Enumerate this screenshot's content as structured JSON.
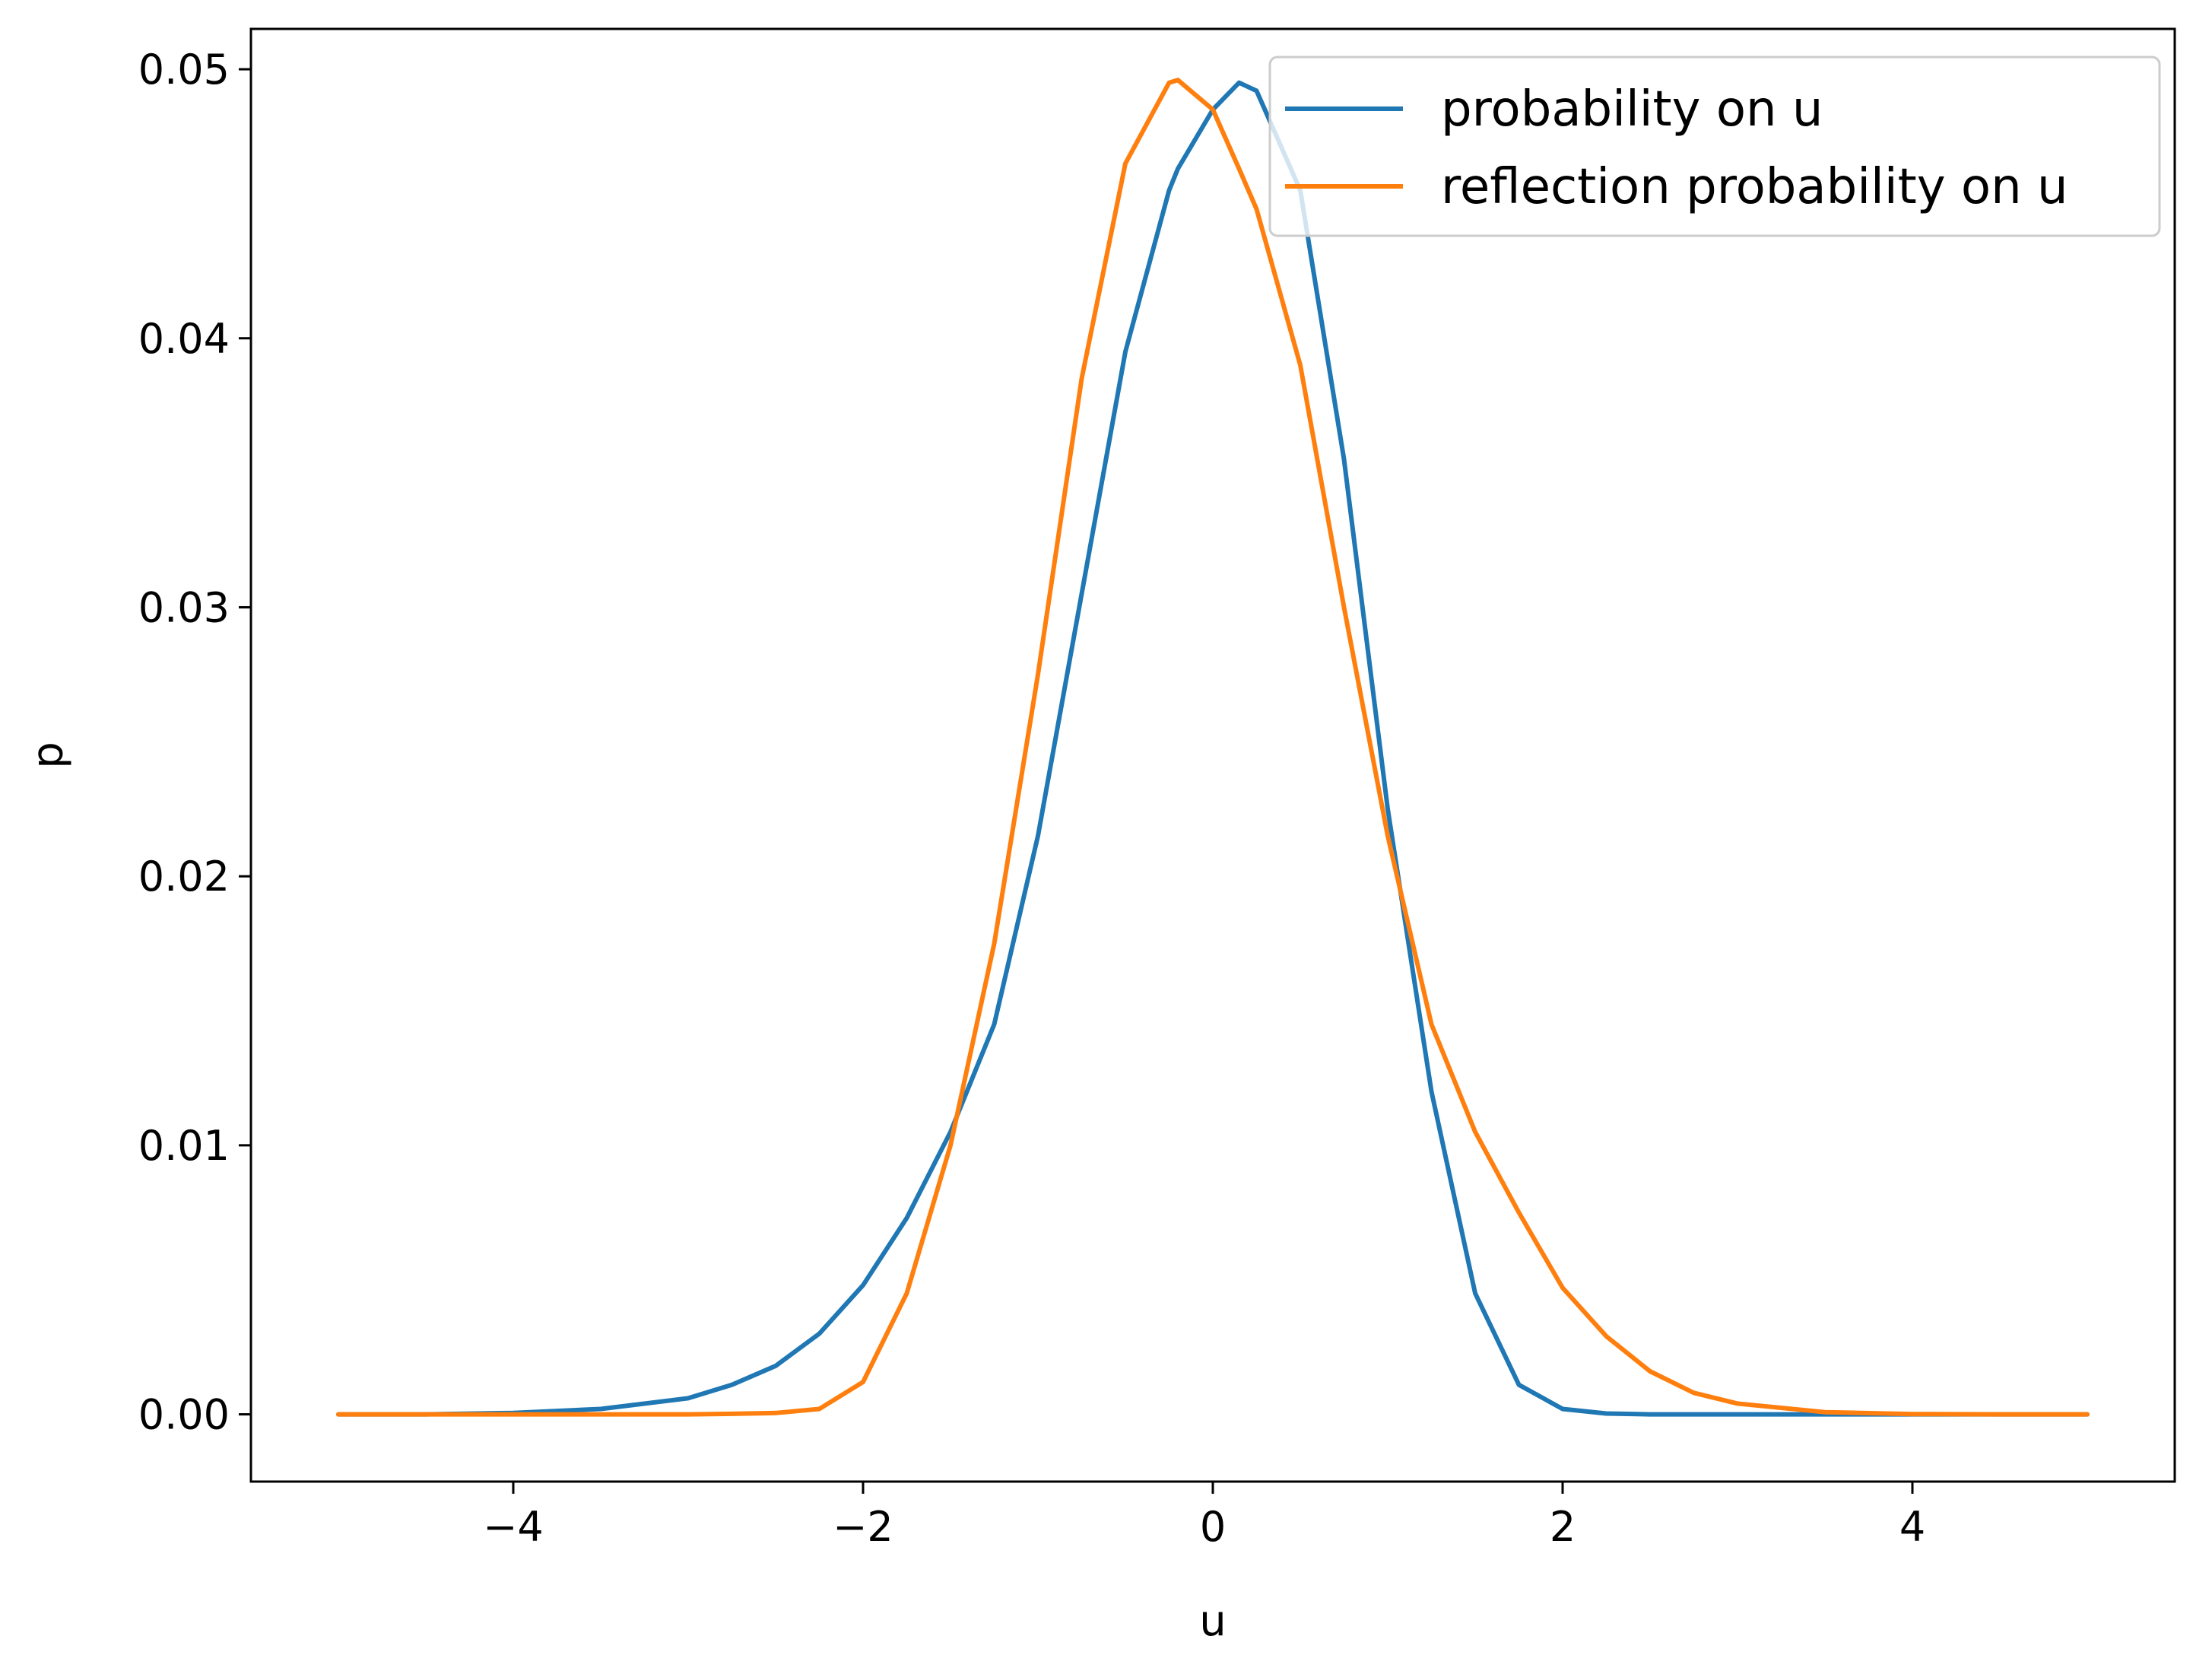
{
  "chart_data": {
    "type": "line",
    "title": "",
    "xlabel": "u",
    "ylabel": "p",
    "xlim": [
      -5.5,
      5.5
    ],
    "ylim": [
      -0.0025,
      0.0515
    ],
    "xticks": [
      -4,
      -2,
      0,
      2,
      4
    ],
    "xtick_labels": [
      "−4",
      "−2",
      "0",
      "2",
      "4"
    ],
    "yticks": [
      0.0,
      0.01,
      0.02,
      0.03,
      0.04,
      0.05
    ],
    "ytick_labels": [
      "0.00",
      "0.01",
      "0.02",
      "0.03",
      "0.04",
      "0.05"
    ],
    "grid": false,
    "legend_position": "upper-right",
    "x": [
      -5,
      -4.5,
      -4,
      -3.5,
      -3,
      -2.75,
      -2.5,
      -2.25,
      -2,
      -1.75,
      -1.5,
      -1.25,
      -1,
      -0.75,
      -0.5,
      -0.25,
      -0.2,
      0,
      0.15,
      0.25,
      0.5,
      0.75,
      1,
      1.25,
      1.5,
      1.75,
      2,
      2.25,
      2.5,
      2.75,
      3,
      3.5,
      4,
      4.5,
      5
    ],
    "series": [
      {
        "name": "probability on u",
        "color": "#1f77b4",
        "values": [
          0,
          0,
          5e-05,
          0.0002,
          0.0006,
          0.0011,
          0.0018,
          0.003,
          0.0048,
          0.0073,
          0.0105,
          0.0145,
          0.0215,
          0.0305,
          0.0395,
          0.0455,
          0.0463,
          0.0485,
          0.0495,
          0.0492,
          0.0455,
          0.0355,
          0.0225,
          0.012,
          0.0045,
          0.0011,
          0.0002,
          3e-05,
          0,
          0,
          0,
          0,
          0,
          0,
          0
        ]
      },
      {
        "name": "reflection probability on u",
        "color": "#ff7f0e",
        "values": [
          0,
          0,
          0,
          0,
          0,
          2e-05,
          5e-05,
          0.0002,
          0.0012,
          0.0045,
          0.01,
          0.0175,
          0.0275,
          0.0385,
          0.0465,
          0.0495,
          0.0496,
          0.0485,
          0.0463,
          0.0448,
          0.039,
          0.03,
          0.0215,
          0.0145,
          0.0105,
          0.0075,
          0.0047,
          0.0029,
          0.0016,
          0.0008,
          0.0004,
          8e-05,
          1e-05,
          0,
          0
        ]
      }
    ]
  }
}
